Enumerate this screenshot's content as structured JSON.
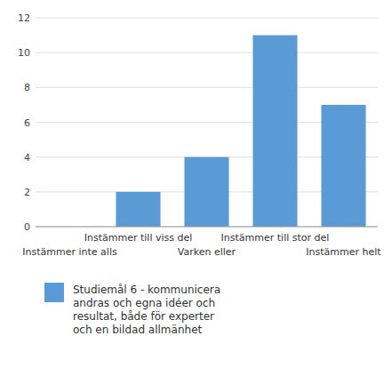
{
  "chart_data": {
    "type": "bar",
    "categories": [
      "Instämmer inte alls",
      "Instämmer till viss del",
      "Varken eller",
      "Instämmer till stor del",
      "Instämmer helt"
    ],
    "series": [
      {
        "name": "Studiemål 6 - kommunicera\nandras och egna idéer och\nresultat, både för experter\noch en bildad allmänhet",
        "color": "#5b9bd5",
        "values": [
          0,
          2,
          4,
          11,
          7
        ]
      }
    ],
    "ylim": [
      0,
      12
    ],
    "yticks": [
      0,
      2,
      4,
      6,
      8,
      10,
      12
    ],
    "grid": true,
    "legend": "bottom"
  }
}
